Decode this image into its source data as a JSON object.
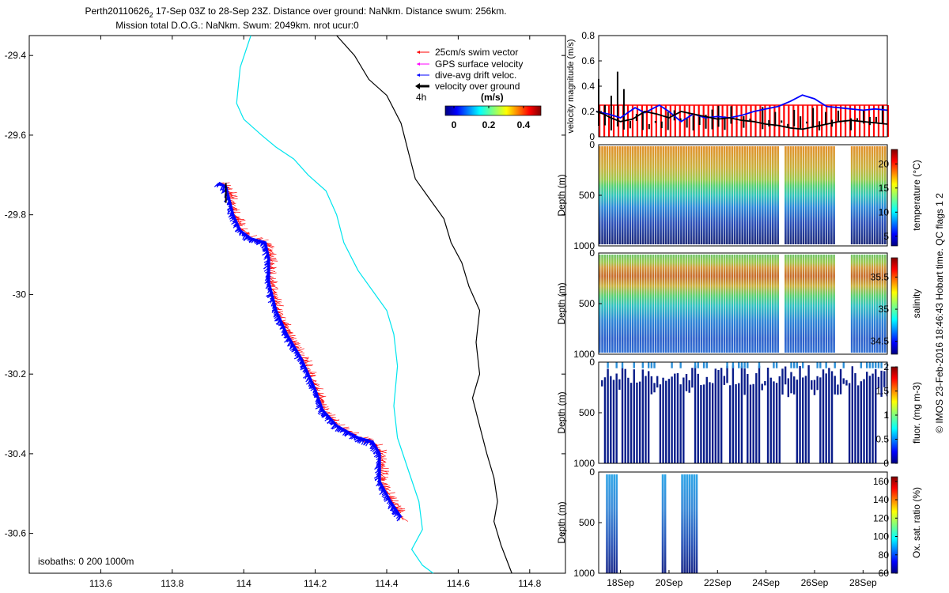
{
  "title": {
    "line1_a": "Perth20110626",
    "line1_sub": "2",
    "line1_b": " 17-Sep 03Z to 28-Sep 23Z. Distance over ground: NaNkm. Distance swum: 256km.",
    "line2": "Mission total D.O.G.: NaNkm. Swum: 2049km. nrot ucur:0"
  },
  "side_label": "© IMOS 23-Feb-2016 18:46:43 Hobart time. QC flags 1  2",
  "colors": {
    "swim": "#ff0000",
    "gps": "#ff00ff",
    "drift": "#0000ff",
    "vog": "#000000",
    "isobath200": "#00e5ee",
    "isobath1000": "#000000"
  },
  "chart_data": [
    {
      "type": "scatter",
      "name": "track-map",
      "xlim": [
        113.4,
        114.9
      ],
      "ylim": [
        -30.7,
        -29.35
      ],
      "xticks": [
        113.6,
        113.8,
        114,
        114.2,
        114.4,
        114.6,
        114.8
      ],
      "yticks": [
        -29.4,
        -29.6,
        -29.8,
        -30,
        -30.2,
        -30.4,
        -30.6
      ],
      "xticklabels": [
        "113.6",
        "113.8",
        "114",
        "114.2",
        "114.4",
        "114.6",
        "114.8"
      ],
      "yticklabels": [
        "-29.4",
        "-29.6",
        "-29.8",
        "-30",
        "-30.2",
        "-30.4",
        "-30.6"
      ],
      "legend": {
        "entries": [
          "25cm/s swim vector",
          "GPS surface velocity",
          "dive-avg drift veloc.",
          "velocity over ground"
        ],
        "time_label": "4h",
        "colorbar_unit": "(m/s)",
        "colorbar_ticks": [
          "0",
          "0.2",
          "0.4"
        ],
        "colorbar_values": [
          0,
          0.2,
          0.4
        ],
        "colorbar_range": [
          -0.05,
          0.5
        ]
      },
      "isobath_label": "isobaths: 0   200   1000m",
      "isobath_200": [
        [
          114.02,
          -29.35
        ],
        [
          113.99,
          -29.43
        ],
        [
          113.98,
          -29.52
        ],
        [
          114.0,
          -29.56
        ],
        [
          114.05,
          -29.6
        ],
        [
          114.09,
          -29.63
        ],
        [
          114.14,
          -29.66
        ],
        [
          114.18,
          -29.7
        ],
        [
          114.23,
          -29.74
        ],
        [
          114.26,
          -29.8
        ],
        [
          114.28,
          -29.87
        ],
        [
          114.32,
          -29.94
        ],
        [
          114.36,
          -29.99
        ],
        [
          114.4,
          -30.04
        ],
        [
          114.42,
          -30.1
        ],
        [
          114.43,
          -30.18
        ],
        [
          114.42,
          -30.28
        ],
        [
          114.43,
          -30.36
        ],
        [
          114.46,
          -30.44
        ],
        [
          114.49,
          -30.52
        ],
        [
          114.5,
          -30.59
        ],
        [
          114.47,
          -30.64
        ],
        [
          114.5,
          -30.68
        ],
        [
          114.53,
          -30.7
        ]
      ],
      "isobath_1000": [
        [
          114.26,
          -29.35
        ],
        [
          114.31,
          -29.4
        ],
        [
          114.35,
          -29.46
        ],
        [
          114.4,
          -29.5
        ],
        [
          114.44,
          -29.57
        ],
        [
          114.46,
          -29.64
        ],
        [
          114.48,
          -29.71
        ],
        [
          114.52,
          -29.76
        ],
        [
          114.56,
          -29.81
        ],
        [
          114.58,
          -29.87
        ],
        [
          114.61,
          -29.92
        ],
        [
          114.63,
          -29.98
        ],
        [
          114.66,
          -30.04
        ],
        [
          114.65,
          -30.12
        ],
        [
          114.66,
          -30.2
        ],
        [
          114.64,
          -30.26
        ],
        [
          114.66,
          -30.33
        ],
        [
          114.68,
          -30.4
        ],
        [
          114.7,
          -30.46
        ],
        [
          114.71,
          -30.52
        ],
        [
          114.7,
          -30.57
        ],
        [
          114.72,
          -30.63
        ],
        [
          114.75,
          -30.7
        ]
      ],
      "track": [
        [
          113.93,
          -29.72
        ],
        [
          113.95,
          -29.73
        ],
        [
          113.97,
          -29.8
        ],
        [
          113.99,
          -29.84
        ],
        [
          114.02,
          -29.86
        ],
        [
          114.06,
          -29.87
        ],
        [
          114.07,
          -29.91
        ],
        [
          114.07,
          -29.97
        ],
        [
          114.09,
          -30.04
        ],
        [
          114.12,
          -30.1
        ],
        [
          114.16,
          -30.16
        ],
        [
          114.2,
          -30.24
        ],
        [
          114.22,
          -30.29
        ],
        [
          114.26,
          -30.33
        ],
        [
          114.32,
          -30.36
        ],
        [
          114.36,
          -30.37
        ],
        [
          114.38,
          -30.4
        ],
        [
          114.38,
          -30.47
        ],
        [
          114.41,
          -30.52
        ],
        [
          114.44,
          -30.56
        ]
      ]
    },
    {
      "type": "line",
      "name": "velocity-magnitude",
      "ylabel": "velocity magnitude (m/s)",
      "ylim": [
        0,
        0.8
      ],
      "yticks": [
        0,
        0.2,
        0.4,
        0.6,
        0.8
      ],
      "xlim": [
        17.1,
        29.0
      ],
      "series": [
        {
          "values": [
            [
              17.0,
              0.2
            ],
            [
              17.5,
              0.18
            ],
            [
              18.0,
              0.15
            ],
            [
              18.6,
              0.23
            ],
            [
              19.0,
              0.19
            ],
            [
              19.6,
              0.25
            ],
            [
              20.0,
              0.2
            ],
            [
              20.5,
              0.12
            ],
            [
              21.0,
              0.18
            ],
            [
              21.5,
              0.15
            ],
            [
              22.0,
              0.16
            ],
            [
              22.5,
              0.15
            ],
            [
              23.0,
              0.17
            ],
            [
              23.5,
              0.2
            ],
            [
              24.0,
              0.22
            ],
            [
              24.5,
              0.24
            ],
            [
              25.0,
              0.28
            ],
            [
              25.5,
              0.33
            ],
            [
              26.0,
              0.3
            ],
            [
              26.5,
              0.24
            ],
            [
              27.0,
              0.23
            ],
            [
              27.5,
              0.22
            ],
            [
              28.0,
              0.21
            ],
            [
              28.5,
              0.22
            ],
            [
              29.0,
              0.21
            ]
          ]
        },
        {
          "values": [
            [
              17.0,
              0.2
            ],
            [
              17.3,
              0.18
            ],
            [
              17.6,
              0.15
            ],
            [
              18.0,
              0.12
            ],
            [
              18.5,
              0.14
            ],
            [
              19.0,
              0.2
            ],
            [
              19.5,
              0.18
            ],
            [
              20.0,
              0.15
            ],
            [
              20.5,
              0.2
            ],
            [
              21.0,
              0.18
            ],
            [
              21.5,
              0.16
            ],
            [
              22.0,
              0.14
            ],
            [
              22.5,
              0.15
            ],
            [
              23.0,
              0.13
            ],
            [
              23.5,
              0.12
            ],
            [
              24.0,
              0.1
            ],
            [
              24.5,
              0.09
            ],
            [
              25.0,
              0.07
            ],
            [
              25.5,
              0.06
            ],
            [
              26.0,
              0.08
            ],
            [
              26.5,
              0.1
            ],
            [
              27.0,
              0.12
            ],
            [
              27.5,
              0.13
            ],
            [
              28.0,
              0.12
            ],
            [
              28.5,
              0.11
            ],
            [
              29.0,
              0.1
            ]
          ]
        }
      ]
    },
    {
      "type": "heatmap",
      "name": "temperature",
      "ylabel": "Depth (m)",
      "ylim": [
        0,
        1000
      ],
      "yticks": [
        0,
        500,
        1000
      ],
      "xlim": [
        17.1,
        29.0
      ],
      "colorbar_label": "temperature (°C)",
      "colorbar_ticks": [
        "5",
        "10",
        "15",
        "20"
      ],
      "colorbar_values": [
        5,
        10,
        15,
        20
      ],
      "colorbar_range": [
        3,
        23
      ],
      "gaps": [
        [
          24.5,
          24.75
        ],
        [
          26.8,
          27.4
        ]
      ]
    },
    {
      "type": "heatmap",
      "name": "salinity",
      "ylabel": "Depth (m)",
      "ylim": [
        0,
        1000
      ],
      "yticks": [
        0,
        500,
        1000
      ],
      "xlim": [
        17.1,
        29.0
      ],
      "colorbar_label": "salinity",
      "colorbar_ticks": [
        "34.5",
        "35",
        "35.5"
      ],
      "colorbar_values": [
        34.5,
        35,
        35.5
      ],
      "colorbar_range": [
        34.3,
        35.8
      ],
      "gaps": [
        [
          24.5,
          24.75
        ],
        [
          26.8,
          27.4
        ]
      ]
    },
    {
      "type": "heatmap",
      "name": "fluorescence",
      "ylabel": "Depth (m)",
      "ylim": [
        0,
        1000
      ],
      "yticks": [
        0,
        500,
        1000
      ],
      "xlim": [
        17.1,
        29.0
      ],
      "colorbar_label": "fluor. (mg m-3)",
      "colorbar_ticks": [
        "0",
        "0.5",
        "1",
        "1.5",
        "2"
      ],
      "colorbar_values": [
        0,
        0.5,
        1,
        1.5,
        2
      ],
      "colorbar_range": [
        0,
        2
      ]
    },
    {
      "type": "heatmap",
      "name": "oxygen",
      "ylabel": "Depth (m)",
      "ylim": [
        0,
        1000
      ],
      "yticks": [
        0,
        500,
        1000
      ],
      "xlim": [
        17.1,
        29.0
      ],
      "xticklabels": [
        "18Sep",
        "20Sep",
        "22Sep",
        "24Sep",
        "26Sep",
        "28Sep"
      ],
      "xticks": [
        18,
        20,
        22,
        24,
        26,
        28
      ],
      "colorbar_label": "Ox. sat. ratio (%)",
      "colorbar_ticks": [
        "60",
        "80",
        "100",
        "120",
        "140",
        "160"
      ],
      "colorbar_values": [
        60,
        80,
        100,
        120,
        140,
        160
      ],
      "colorbar_range": [
        60,
        165
      ]
    }
  ]
}
